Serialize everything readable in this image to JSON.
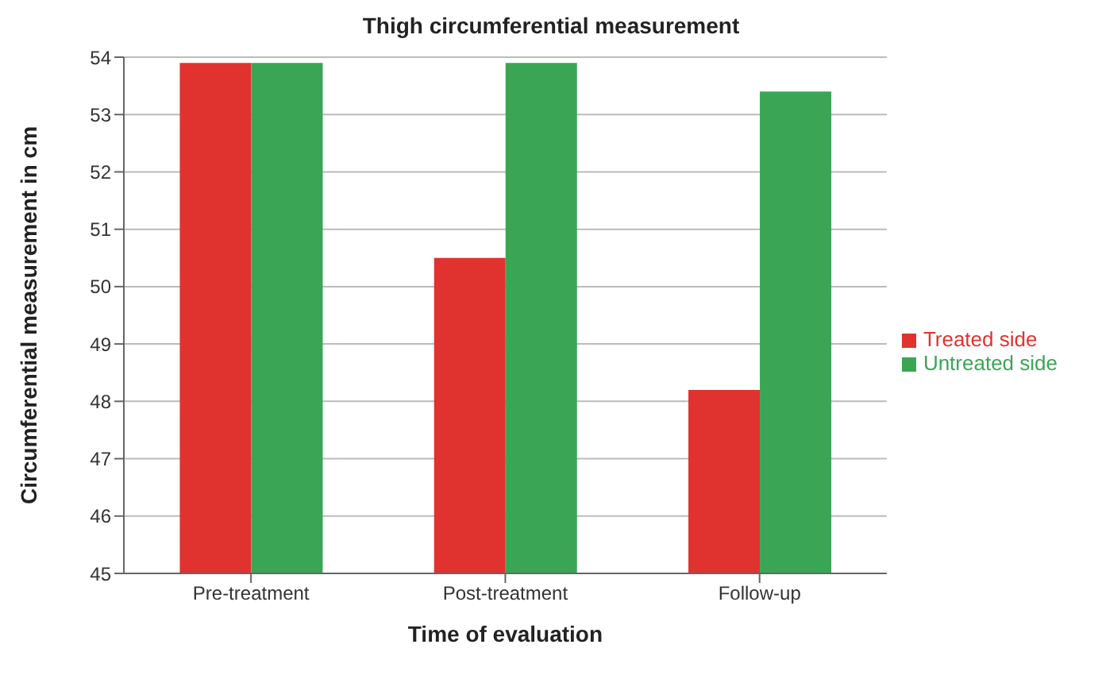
{
  "chart_data": {
    "type": "bar",
    "title": "Thigh circumferential measurement",
    "xlabel": "Time of evaluation",
    "ylabel": "Circumferential measurement in cm",
    "categories": [
      "Pre-treatment",
      "Post-treatment",
      "Follow-up"
    ],
    "series": [
      {
        "name": "Treated side",
        "color": "#e0322f",
        "values": [
          53.9,
          50.5,
          48.2
        ]
      },
      {
        "name": "Untreated side",
        "color": "#3aa655",
        "values": [
          53.9,
          53.9,
          53.4
        ]
      }
    ],
    "ylim": [
      45,
      54
    ],
    "yticks": [
      45,
      46,
      47,
      48,
      49,
      50,
      51,
      52,
      53,
      54
    ],
    "grid": "y",
    "legend": "right"
  }
}
